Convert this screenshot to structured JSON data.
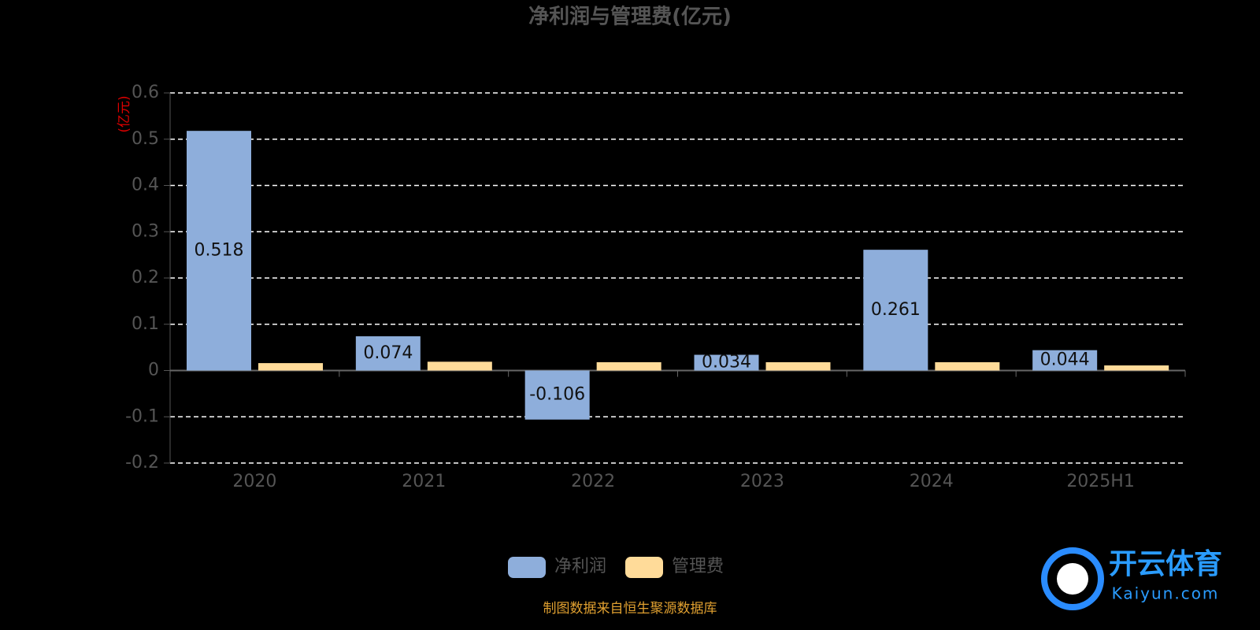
{
  "chart_data": {
    "type": "bar",
    "title": "净利润与管理费(亿元)",
    "y_label": "(亿元)",
    "categories": [
      "2020",
      "2021",
      "2022",
      "2023",
      "2024",
      "2025H1"
    ],
    "series": [
      {
        "name": "净利润",
        "color": "#8eaedb",
        "values": [
          0.518,
          0.074,
          -0.106,
          0.034,
          0.261,
          0.044
        ],
        "labels": true
      },
      {
        "name": "管理费",
        "color": "#ffdb99",
        "values": [
          0.016,
          0.019,
          0.018,
          0.018,
          0.018,
          0.011
        ],
        "labels": false
      }
    ],
    "ylim": [
      -0.2,
      0.6
    ],
    "yticks": [
      -0.2,
      -0.1,
      0,
      0.1,
      0.2,
      0.3,
      0.4,
      0.5,
      0.6
    ],
    "grid": true,
    "legend": "bottom",
    "source": "制图数据来自恒生聚源数据库"
  },
  "watermark": {
    "name": "开云体育",
    "url": "Kaiyun.com"
  }
}
